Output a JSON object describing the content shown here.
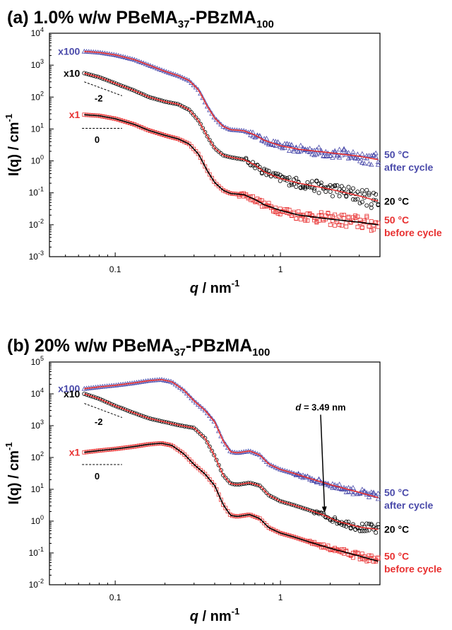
{
  "chart_data": [
    {
      "id": "a",
      "type": "scatter",
      "title_prefix": "(a) 1.0% w/w PBeMA",
      "title_sub1": "37",
      "title_mid": "-PBzMA",
      "title_sub2": "100",
      "xlabel": "q",
      "xlabel_unit": " / nm",
      "xlabel_exp": "-1",
      "ylabel": "I(q) / cm",
      "ylabel_exp": "-1",
      "xscale": "log",
      "yscale": "log",
      "xlim": [
        0.04,
        4.0
      ],
      "ylim_exp": [
        -3,
        4
      ],
      "x_ticks": [
        {
          "v": 0.1,
          "label": "0.1"
        },
        {
          "v": 1,
          "label": "1"
        }
      ],
      "y_ticks": [
        {
          "e": -3,
          "label": "10",
          "sup": "-3"
        },
        {
          "e": -2,
          "label": "10",
          "sup": "-2"
        },
        {
          "e": -1,
          "label": "10",
          "sup": "-1"
        },
        {
          "e": 0,
          "label": "10",
          "sup": "0"
        },
        {
          "e": 1,
          "label": "10",
          "sup": "1"
        },
        {
          "e": 2,
          "label": "10",
          "sup": "2"
        },
        {
          "e": 3,
          "label": "10",
          "sup": "3"
        },
        {
          "e": 4,
          "label": "10",
          "sup": "4"
        }
      ],
      "series": [
        {
          "name": "50 °C after cycle",
          "label_line1": "50 °C",
          "label_line2": "after cycle",
          "scale_label": "x100",
          "marker": "triangle",
          "color": "#4a4aaa",
          "fit_color": "#e83030",
          "noise_q": 0.65,
          "noise": 0.16,
          "points": [
            [
              0.065,
              2700
            ],
            [
              0.08,
              2500
            ],
            [
              0.1,
              2100
            ],
            [
              0.13,
              1500
            ],
            [
              0.16,
              1000
            ],
            [
              0.2,
              640
            ],
            [
              0.24,
              470
            ],
            [
              0.28,
              330
            ],
            [
              0.32,
              165
            ],
            [
              0.36,
              52
            ],
            [
              0.4,
              22
            ],
            [
              0.45,
              12
            ],
            [
              0.5,
              9.5
            ],
            [
              0.6,
              8.8
            ],
            [
              0.7,
              6.5
            ],
            [
              0.8,
              4.4
            ],
            [
              1.0,
              3.0
            ],
            [
              1.3,
              2.3
            ],
            [
              2.0,
              1.8
            ],
            [
              3.0,
              1.4
            ],
            [
              3.9,
              1.1
            ]
          ]
        },
        {
          "name": "20 °C",
          "label_line1": "20 °C",
          "label_line2": "",
          "scale_label": "x10",
          "marker": "circle",
          "color": "#000000",
          "fit_color": "#e83030",
          "noise_q": 0.6,
          "noise": 0.2,
          "points": [
            [
              0.065,
              560
            ],
            [
              0.08,
              420
            ],
            [
              0.1,
              270
            ],
            [
              0.13,
              160
            ],
            [
              0.16,
              100
            ],
            [
              0.2,
              72
            ],
            [
              0.24,
              60
            ],
            [
              0.28,
              40
            ],
            [
              0.32,
              18
            ],
            [
              0.36,
              6
            ],
            [
              0.4,
              2.5
            ],
            [
              0.45,
              1.5
            ],
            [
              0.5,
              1.3
            ],
            [
              0.6,
              1.1
            ],
            [
              0.7,
              0.75
            ],
            [
              0.8,
              0.45
            ],
            [
              1.0,
              0.28
            ],
            [
              1.3,
              0.2
            ],
            [
              2.0,
              0.13
            ],
            [
              3.0,
              0.08
            ],
            [
              3.9,
              0.055
            ]
          ]
        },
        {
          "name": "50 °C before cycle",
          "label_line1": "50 °C",
          "label_line2": "before cycle",
          "scale_label": "x1",
          "marker": "square",
          "color": "#e83030",
          "fit_color": "#000000",
          "noise_q": 0.55,
          "noise": 0.18,
          "points": [
            [
              0.065,
              28
            ],
            [
              0.08,
              26
            ],
            [
              0.1,
              21
            ],
            [
              0.13,
              14
            ],
            [
              0.16,
              9
            ],
            [
              0.2,
              6.3
            ],
            [
              0.24,
              4.9
            ],
            [
              0.28,
              3.4
            ],
            [
              0.32,
              1.6
            ],
            [
              0.36,
              0.5
            ],
            [
              0.4,
              0.21
            ],
            [
              0.45,
              0.12
            ],
            [
              0.5,
              0.095
            ],
            [
              0.6,
              0.088
            ],
            [
              0.7,
              0.062
            ],
            [
              0.8,
              0.042
            ],
            [
              1.0,
              0.028
            ],
            [
              1.3,
              0.02
            ],
            [
              2.0,
              0.015
            ],
            [
              3.0,
              0.012
            ],
            [
              3.9,
              0.01
            ]
          ]
        }
      ],
      "slopes": [
        {
          "label": "-2",
          "x1": 0.065,
          "y1": 300,
          "x2": 0.11,
          "y2": 110,
          "lx": 0.075,
          "ly": 90
        },
        {
          "label": "0",
          "x1": 0.063,
          "y1": 10.5,
          "x2": 0.11,
          "y2": 10.5,
          "lx": 0.075,
          "ly": 4.5
        }
      ],
      "annotation": null
    },
    {
      "id": "b",
      "type": "scatter",
      "title_prefix": "(b) 20% w/w PBeMA",
      "title_sub1": "37",
      "title_mid": "-PBzMA",
      "title_sub2": "100",
      "xlabel": "q",
      "xlabel_unit": " / nm",
      "xlabel_exp": "-1",
      "ylabel": "I(q) / cm",
      "ylabel_exp": "-1",
      "xscale": "log",
      "yscale": "log",
      "xlim": [
        0.04,
        4.0
      ],
      "ylim_exp": [
        -2,
        5
      ],
      "x_ticks": [
        {
          "v": 0.1,
          "label": "0.1"
        },
        {
          "v": 1,
          "label": "1"
        }
      ],
      "y_ticks": [
        {
          "e": -2,
          "label": "10",
          "sup": "-2"
        },
        {
          "e": -1,
          "label": "10",
          "sup": "-1"
        },
        {
          "e": 0,
          "label": "10",
          "sup": "0"
        },
        {
          "e": 1,
          "label": "10",
          "sup": "1"
        },
        {
          "e": 2,
          "label": "10",
          "sup": "2"
        },
        {
          "e": 3,
          "label": "10",
          "sup": "3"
        },
        {
          "e": 4,
          "label": "10",
          "sup": "4"
        },
        {
          "e": 5,
          "label": "10",
          "sup": "5"
        }
      ],
      "series": [
        {
          "name": "50 °C after cycle",
          "label_line1": "50 °C",
          "label_line2": "after cycle",
          "scale_label": "x100",
          "marker": "triangle",
          "color": "#4a4aaa",
          "fit_color": "#e83030",
          "noise_q": 1.2,
          "noise": 0.1,
          "points": [
            [
              0.065,
              14500
            ],
            [
              0.08,
              16500
            ],
            [
              0.1,
              18500
            ],
            [
              0.13,
              22000
            ],
            [
              0.16,
              26000
            ],
            [
              0.19,
              28000
            ],
            [
              0.22,
              24000
            ],
            [
              0.26,
              13000
            ],
            [
              0.3,
              6000
            ],
            [
              0.35,
              3000
            ],
            [
              0.4,
              1300
            ],
            [
              0.45,
              330
            ],
            [
              0.5,
              150
            ],
            [
              0.55,
              140
            ],
            [
              0.65,
              160
            ],
            [
              0.75,
              120
            ],
            [
              0.85,
              62
            ],
            [
              1.0,
              42
            ],
            [
              1.2,
              32
            ],
            [
              1.5,
              22
            ],
            [
              2.0,
              14
            ],
            [
              3.0,
              8
            ],
            [
              3.9,
              5.5
            ]
          ]
        },
        {
          "name": "20 °C",
          "label_line1": "20 °C",
          "label_line2": "",
          "scale_label": "x10",
          "marker": "circle",
          "color": "#000000",
          "fit_color": "#e83030",
          "noise_q": 1.6,
          "noise": 0.12,
          "points": [
            [
              0.065,
              10000
            ],
            [
              0.08,
              7000
            ],
            [
              0.1,
              4200
            ],
            [
              0.13,
              2500
            ],
            [
              0.16,
              1700
            ],
            [
              0.2,
              1300
            ],
            [
              0.25,
              1000
            ],
            [
              0.3,
              850
            ],
            [
              0.35,
              400
            ],
            [
              0.4,
              110
            ],
            [
              0.45,
              28
            ],
            [
              0.5,
              15
            ],
            [
              0.55,
              14
            ],
            [
              0.65,
              16
            ],
            [
              0.75,
              13
            ],
            [
              0.85,
              6.5
            ],
            [
              1.0,
              4.2
            ],
            [
              1.2,
              3.2
            ],
            [
              1.5,
              2.2
            ],
            [
              1.8,
              1.6
            ],
            [
              2.2,
              1.0
            ],
            [
              3.0,
              0.65
            ],
            [
              3.9,
              0.55
            ]
          ]
        },
        {
          "name": "50 °C before cycle",
          "label_line1": "50 °C",
          "label_line2": "before cycle",
          "scale_label": "x1",
          "marker": "square",
          "color": "#e83030",
          "fit_color": "#000000",
          "noise_q": 1.5,
          "noise": 0.1,
          "points": [
            [
              0.065,
              145
            ],
            [
              0.08,
              165
            ],
            [
              0.1,
              185
            ],
            [
              0.13,
              220
            ],
            [
              0.16,
              260
            ],
            [
              0.19,
              280
            ],
            [
              0.22,
              240
            ],
            [
              0.26,
              130
            ],
            [
              0.3,
              60
            ],
            [
              0.35,
              30
            ],
            [
              0.4,
              13
            ],
            [
              0.45,
              3.3
            ],
            [
              0.5,
              1.5
            ],
            [
              0.55,
              1.4
            ],
            [
              0.65,
              1.6
            ],
            [
              0.75,
              1.2
            ],
            [
              0.85,
              0.62
            ],
            [
              1.0,
              0.42
            ],
            [
              1.2,
              0.32
            ],
            [
              1.5,
              0.22
            ],
            [
              2.0,
              0.14
            ],
            [
              3.0,
              0.08
            ],
            [
              3.9,
              0.055
            ]
          ]
        }
      ],
      "slopes": [
        {
          "label": "-2",
          "x1": 0.065,
          "y1": 5000,
          "x2": 0.11,
          "y2": 1800,
          "lx": 0.075,
          "ly": 1300
        },
        {
          "label": "0",
          "x1": 0.063,
          "y1": 60,
          "x2": 0.11,
          "y2": 60,
          "lx": 0.075,
          "ly": 25
        }
      ],
      "annotation": {
        "text_prefix": "d",
        "text_rest": " = 3.49 nm",
        "tx": 1.75,
        "ty": 3000,
        "px": 1.85,
        "py": 1.6
      }
    }
  ]
}
